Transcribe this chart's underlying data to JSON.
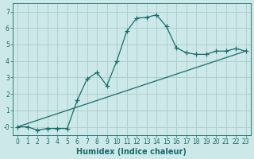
{
  "xlabel": "Humidex (Indice chaleur)",
  "ylabel": "",
  "background_color": "#cce8e8",
  "grid_color": "#aacccc",
  "line_color": "#1a6b6b",
  "line1_x": [
    0,
    1,
    2,
    3,
    4,
    5,
    6,
    7,
    8,
    9,
    10,
    11,
    12,
    13,
    14,
    15,
    16,
    17,
    18,
    19,
    20,
    21,
    22,
    23
  ],
  "line1_y": [
    0.0,
    -0.0,
    -0.2,
    -0.1,
    -0.1,
    -0.1,
    1.6,
    2.9,
    3.3,
    2.5,
    4.0,
    5.8,
    6.6,
    6.65,
    6.8,
    6.1,
    4.8,
    4.5,
    4.4,
    4.4,
    4.6,
    4.6,
    4.75,
    4.6
  ],
  "line2_x": [
    0,
    23
  ],
  "line2_y": [
    0.0,
    4.6
  ],
  "ylim": [
    -0.5,
    7.5
  ],
  "xlim": [
    -0.5,
    23.5
  ],
  "yticks": [
    0,
    1,
    2,
    3,
    4,
    5,
    6,
    7
  ],
  "xticks": [
    0,
    1,
    2,
    3,
    4,
    5,
    6,
    7,
    8,
    9,
    10,
    11,
    12,
    13,
    14,
    15,
    16,
    17,
    18,
    19,
    20,
    21,
    22,
    23
  ],
  "marker": "+",
  "markersize": 4,
  "linewidth": 0.9,
  "tick_fontsize": 5.5,
  "xlabel_fontsize": 7
}
